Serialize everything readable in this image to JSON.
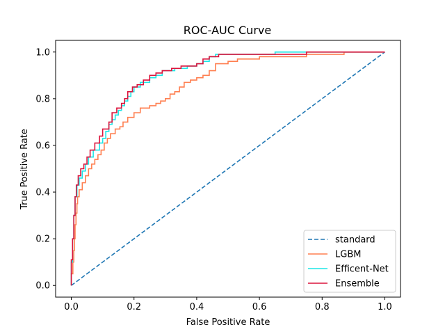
{
  "chart_data": {
    "type": "line",
    "title": "ROC-AUC Curve",
    "xlabel": "False Positive Rate",
    "ylabel": "True Positive Rate",
    "xlim": [
      -0.05,
      1.05
    ],
    "ylim": [
      -0.05,
      1.05
    ],
    "xticks": [
      "0.0",
      "0.2",
      "0.4",
      "0.6",
      "0.8",
      "1.0"
    ],
    "yticks": [
      "0.0",
      "0.2",
      "0.4",
      "0.6",
      "0.8",
      "1.0"
    ],
    "legend_position": "lower-right",
    "series": [
      {
        "name": "standard",
        "color": "#1f77b4",
        "dashed": true,
        "points": [
          [
            0,
            0
          ],
          [
            1,
            1
          ]
        ]
      },
      {
        "name": "LGBM",
        "color": "#ff7f50",
        "dashed": false,
        "points": [
          [
            0,
            0
          ],
          [
            0,
            0.05
          ],
          [
            0.005,
            0.05
          ],
          [
            0.005,
            0.1
          ],
          [
            0.008,
            0.1
          ],
          [
            0.008,
            0.15
          ],
          [
            0.01,
            0.15
          ],
          [
            0.01,
            0.2
          ],
          [
            0.012,
            0.2
          ],
          [
            0.012,
            0.26
          ],
          [
            0.015,
            0.26
          ],
          [
            0.015,
            0.31
          ],
          [
            0.018,
            0.31
          ],
          [
            0.018,
            0.35
          ],
          [
            0.02,
            0.35
          ],
          [
            0.02,
            0.38
          ],
          [
            0.025,
            0.38
          ],
          [
            0.025,
            0.41
          ],
          [
            0.035,
            0.41
          ],
          [
            0.035,
            0.44
          ],
          [
            0.045,
            0.44
          ],
          [
            0.045,
            0.47
          ],
          [
            0.055,
            0.47
          ],
          [
            0.055,
            0.5
          ],
          [
            0.065,
            0.5
          ],
          [
            0.065,
            0.52
          ],
          [
            0.075,
            0.52
          ],
          [
            0.075,
            0.54
          ],
          [
            0.085,
            0.54
          ],
          [
            0.085,
            0.56
          ],
          [
            0.095,
            0.56
          ],
          [
            0.095,
            0.58
          ],
          [
            0.105,
            0.58
          ],
          [
            0.105,
            0.61
          ],
          [
            0.115,
            0.61
          ],
          [
            0.115,
            0.63
          ],
          [
            0.125,
            0.63
          ],
          [
            0.125,
            0.65
          ],
          [
            0.14,
            0.65
          ],
          [
            0.14,
            0.67
          ],
          [
            0.155,
            0.67
          ],
          [
            0.155,
            0.68
          ],
          [
            0.165,
            0.68
          ],
          [
            0.165,
            0.7
          ],
          [
            0.18,
            0.7
          ],
          [
            0.18,
            0.72
          ],
          [
            0.2,
            0.72
          ],
          [
            0.2,
            0.74
          ],
          [
            0.22,
            0.74
          ],
          [
            0.22,
            0.76
          ],
          [
            0.25,
            0.76
          ],
          [
            0.25,
            0.77
          ],
          [
            0.27,
            0.77
          ],
          [
            0.27,
            0.78
          ],
          [
            0.285,
            0.78
          ],
          [
            0.285,
            0.79
          ],
          [
            0.3,
            0.79
          ],
          [
            0.3,
            0.8
          ],
          [
            0.315,
            0.8
          ],
          [
            0.315,
            0.82
          ],
          [
            0.33,
            0.82
          ],
          [
            0.33,
            0.83
          ],
          [
            0.345,
            0.83
          ],
          [
            0.345,
            0.85
          ],
          [
            0.36,
            0.85
          ],
          [
            0.36,
            0.87
          ],
          [
            0.38,
            0.87
          ],
          [
            0.38,
            0.88
          ],
          [
            0.4,
            0.88
          ],
          [
            0.4,
            0.89
          ],
          [
            0.42,
            0.89
          ],
          [
            0.42,
            0.9
          ],
          [
            0.44,
            0.9
          ],
          [
            0.44,
            0.92
          ],
          [
            0.46,
            0.92
          ],
          [
            0.46,
            0.95
          ],
          [
            0.5,
            0.95
          ],
          [
            0.5,
            0.96
          ],
          [
            0.53,
            0.96
          ],
          [
            0.53,
            0.97
          ],
          [
            0.6,
            0.97
          ],
          [
            0.6,
            0.98
          ],
          [
            0.75,
            0.98
          ],
          [
            0.75,
            0.99
          ],
          [
            0.87,
            0.99
          ],
          [
            0.87,
            1.0
          ],
          [
            1.0,
            1.0
          ]
        ]
      },
      {
        "name": "Efficent-Net",
        "color": "#1ee6e6",
        "dashed": false,
        "points": [
          [
            0,
            0
          ],
          [
            0,
            0.1
          ],
          [
            0.004,
            0.1
          ],
          [
            0.004,
            0.2
          ],
          [
            0.008,
            0.2
          ],
          [
            0.008,
            0.3
          ],
          [
            0.012,
            0.3
          ],
          [
            0.012,
            0.38
          ],
          [
            0.018,
            0.38
          ],
          [
            0.018,
            0.43
          ],
          [
            0.025,
            0.43
          ],
          [
            0.025,
            0.46
          ],
          [
            0.035,
            0.46
          ],
          [
            0.035,
            0.49
          ],
          [
            0.045,
            0.49
          ],
          [
            0.045,
            0.52
          ],
          [
            0.055,
            0.52
          ],
          [
            0.055,
            0.55
          ],
          [
            0.07,
            0.55
          ],
          [
            0.07,
            0.58
          ],
          [
            0.09,
            0.58
          ],
          [
            0.09,
            0.61
          ],
          [
            0.1,
            0.61
          ],
          [
            0.1,
            0.63
          ],
          [
            0.11,
            0.63
          ],
          [
            0.11,
            0.66
          ],
          [
            0.12,
            0.66
          ],
          [
            0.12,
            0.69
          ],
          [
            0.13,
            0.69
          ],
          [
            0.13,
            0.71
          ],
          [
            0.14,
            0.71
          ],
          [
            0.14,
            0.73
          ],
          [
            0.15,
            0.73
          ],
          [
            0.15,
            0.75
          ],
          [
            0.16,
            0.75
          ],
          [
            0.16,
            0.77
          ],
          [
            0.17,
            0.77
          ],
          [
            0.17,
            0.79
          ],
          [
            0.18,
            0.79
          ],
          [
            0.18,
            0.81
          ],
          [
            0.19,
            0.81
          ],
          [
            0.19,
            0.83
          ],
          [
            0.2,
            0.83
          ],
          [
            0.2,
            0.85
          ],
          [
            0.22,
            0.85
          ],
          [
            0.22,
            0.87
          ],
          [
            0.25,
            0.87
          ],
          [
            0.25,
            0.89
          ],
          [
            0.27,
            0.89
          ],
          [
            0.27,
            0.9
          ],
          [
            0.29,
            0.9
          ],
          [
            0.29,
            0.92
          ],
          [
            0.33,
            0.92
          ],
          [
            0.33,
            0.93
          ],
          [
            0.37,
            0.93
          ],
          [
            0.37,
            0.94
          ],
          [
            0.4,
            0.94
          ],
          [
            0.4,
            0.95
          ],
          [
            0.42,
            0.95
          ],
          [
            0.42,
            0.96
          ],
          [
            0.44,
            0.96
          ],
          [
            0.44,
            0.98
          ],
          [
            0.46,
            0.98
          ],
          [
            0.46,
            0.99
          ],
          [
            0.65,
            0.99
          ],
          [
            0.65,
            1.0
          ],
          [
            1.0,
            1.0
          ]
        ]
      },
      {
        "name": "Ensemble",
        "color": "#dc143c",
        "dashed": false,
        "points": [
          [
            0,
            0
          ],
          [
            0,
            0.11
          ],
          [
            0.004,
            0.11
          ],
          [
            0.004,
            0.2
          ],
          [
            0.008,
            0.2
          ],
          [
            0.008,
            0.3
          ],
          [
            0.012,
            0.3
          ],
          [
            0.012,
            0.38
          ],
          [
            0.016,
            0.38
          ],
          [
            0.016,
            0.43
          ],
          [
            0.022,
            0.43
          ],
          [
            0.022,
            0.47
          ],
          [
            0.03,
            0.47
          ],
          [
            0.03,
            0.5
          ],
          [
            0.04,
            0.5
          ],
          [
            0.04,
            0.52
          ],
          [
            0.05,
            0.52
          ],
          [
            0.05,
            0.55
          ],
          [
            0.06,
            0.55
          ],
          [
            0.06,
            0.58
          ],
          [
            0.075,
            0.58
          ],
          [
            0.075,
            0.61
          ],
          [
            0.09,
            0.61
          ],
          [
            0.09,
            0.64
          ],
          [
            0.1,
            0.64
          ],
          [
            0.1,
            0.67
          ],
          [
            0.12,
            0.67
          ],
          [
            0.12,
            0.7
          ],
          [
            0.13,
            0.7
          ],
          [
            0.13,
            0.74
          ],
          [
            0.145,
            0.74
          ],
          [
            0.145,
            0.76
          ],
          [
            0.16,
            0.76
          ],
          [
            0.16,
            0.78
          ],
          [
            0.17,
            0.78
          ],
          [
            0.17,
            0.8
          ],
          [
            0.18,
            0.8
          ],
          [
            0.18,
            0.83
          ],
          [
            0.195,
            0.83
          ],
          [
            0.195,
            0.85
          ],
          [
            0.21,
            0.85
          ],
          [
            0.21,
            0.86
          ],
          [
            0.23,
            0.86
          ],
          [
            0.23,
            0.88
          ],
          [
            0.25,
            0.88
          ],
          [
            0.25,
            0.9
          ],
          [
            0.27,
            0.9
          ],
          [
            0.27,
            0.91
          ],
          [
            0.29,
            0.91
          ],
          [
            0.29,
            0.92
          ],
          [
            0.32,
            0.92
          ],
          [
            0.32,
            0.93
          ],
          [
            0.35,
            0.93
          ],
          [
            0.35,
            0.94
          ],
          [
            0.4,
            0.94
          ],
          [
            0.4,
            0.95
          ],
          [
            0.42,
            0.95
          ],
          [
            0.42,
            0.97
          ],
          [
            0.44,
            0.97
          ],
          [
            0.44,
            0.98
          ],
          [
            0.47,
            0.98
          ],
          [
            0.47,
            0.99
          ],
          [
            0.75,
            0.99
          ],
          [
            0.75,
            1.0
          ],
          [
            1.0,
            1.0
          ]
        ]
      }
    ]
  }
}
